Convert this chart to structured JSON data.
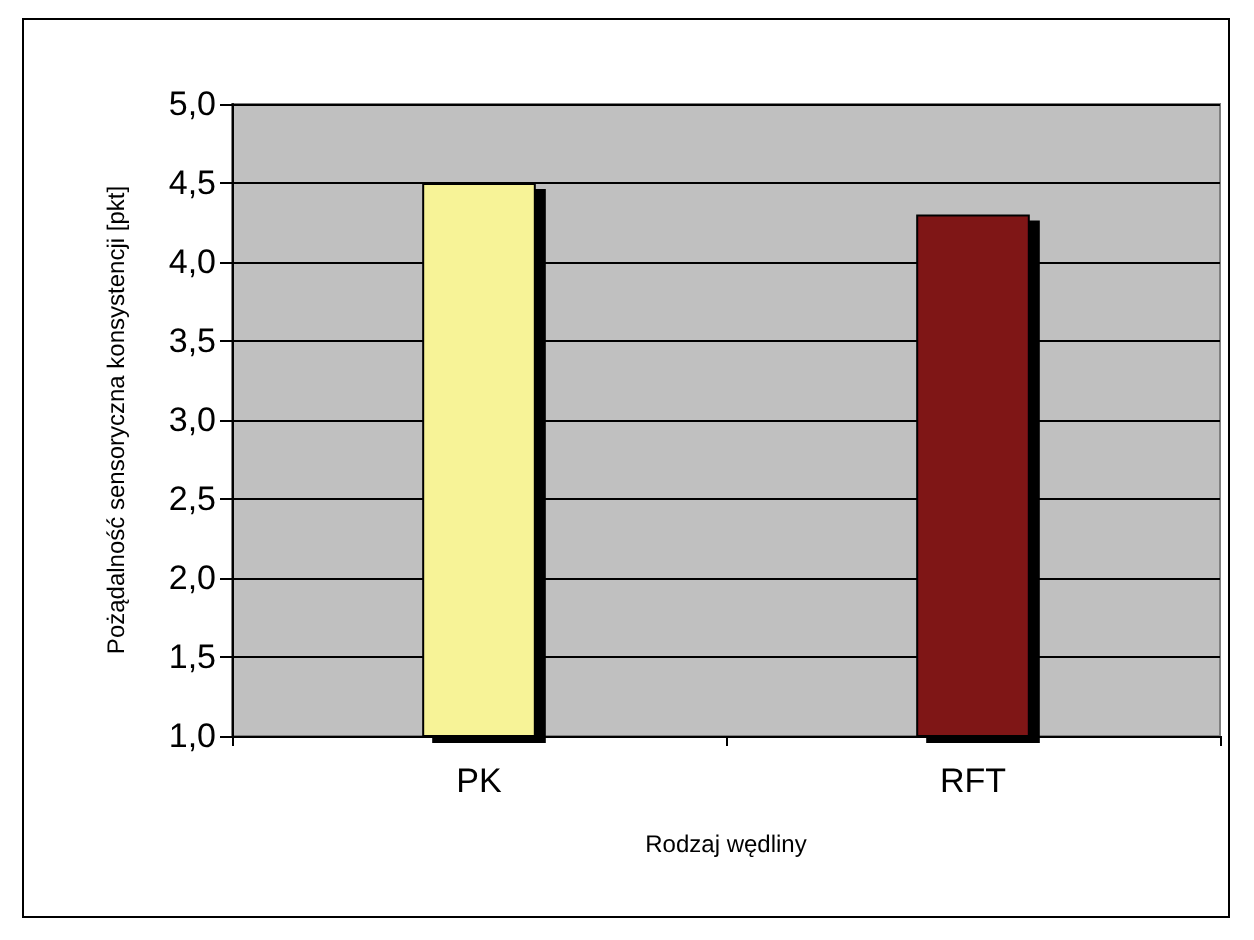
{
  "chart_data": {
    "type": "bar",
    "xlabel": "Rodzaj wędliny",
    "ylabel": "Pożądalność sensoryczna konsystencji [pkt]",
    "categories": [
      "PK",
      "RFT"
    ],
    "values": [
      4.5,
      4.3
    ],
    "colors": [
      "#f7f397",
      "#7f1418"
    ],
    "ylim": [
      1.0,
      5.0
    ],
    "yticks": [
      {
        "value": 1.0,
        "label": "1,0"
      },
      {
        "value": 1.5,
        "label": "1,5"
      },
      {
        "value": 2.0,
        "label": "2,0"
      },
      {
        "value": 2.5,
        "label": "2,5"
      },
      {
        "value": 3.0,
        "label": "3,0"
      },
      {
        "value": 3.5,
        "label": "3,5"
      },
      {
        "value": 4.0,
        "label": "4,0"
      },
      {
        "value": 4.5,
        "label": "4,5"
      },
      {
        "value": 5.0,
        "label": "5,0"
      }
    ],
    "grid": "y"
  }
}
